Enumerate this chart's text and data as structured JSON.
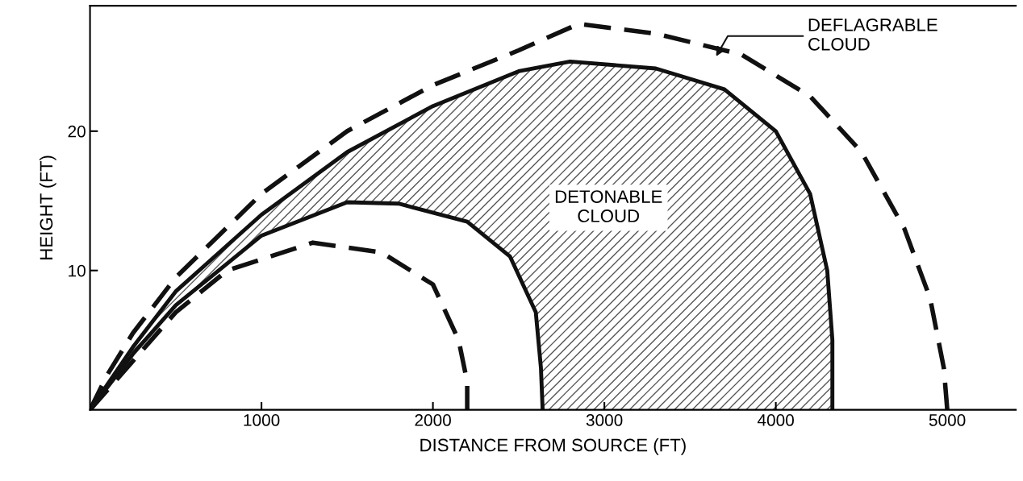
{
  "chart_data": {
    "type": "line",
    "xlabel": "DISTANCE FROM SOURCE (FT)",
    "ylabel": "HEIGHT (FT)",
    "xlim": [
      0,
      5400
    ],
    "ylim": [
      0,
      29
    ],
    "xticks": [
      1000,
      2000,
      3000,
      4000,
      5000
    ],
    "yticks": [
      10,
      20
    ],
    "grid": false,
    "legend": false,
    "series": [
      {
        "color": "#111111",
        "line_style": "dashed",
        "x": [
          0,
          100,
          250,
          500,
          750,
          1000,
          1500,
          2000,
          2500,
          2850,
          3300,
          3800,
          4200,
          4500,
          4750,
          4900,
          4980,
          5000
        ],
        "values": [
          0,
          2.5,
          5.5,
          9.5,
          12.5,
          15.5,
          20,
          23.3,
          25.8,
          27.7,
          27,
          25.5,
          22.5,
          18.5,
          13,
          8,
          3,
          0
        ]
      },
      {
        "type": "area",
        "color": "#111111",
        "line_style": "solid",
        "x": [
          0,
          250,
          500,
          1000,
          1500,
          2000,
          2500,
          2800,
          3300,
          3700,
          4000,
          4200,
          4300,
          4330,
          4330
        ],
        "values": [
          0,
          4.5,
          8.5,
          14,
          18.5,
          21.8,
          24.3,
          25,
          24.5,
          23,
          20,
          15.5,
          10,
          5,
          0
        ]
      },
      {
        "type": "area",
        "color": "#111111",
        "line_style": "solid",
        "x": [
          0,
          250,
          500,
          1000,
          1500,
          1800,
          2200,
          2450,
          2600,
          2630,
          2640
        ],
        "values": [
          0,
          4,
          7.5,
          12.5,
          14.9,
          14.8,
          13.5,
          11,
          7,
          3,
          0
        ]
      },
      {
        "color": "#111111",
        "line_style": "dashed",
        "x": [
          0,
          250,
          500,
          800,
          1300,
          1700,
          2000,
          2150,
          2200,
          2200
        ],
        "values": [
          0,
          3.5,
          7,
          10,
          12,
          11.3,
          9,
          5,
          2,
          0
        ]
      }
    ],
    "annotations": [
      "DETONABLE\nCLOUD",
      "DEFLAGRABLE\nCLOUD"
    ]
  }
}
